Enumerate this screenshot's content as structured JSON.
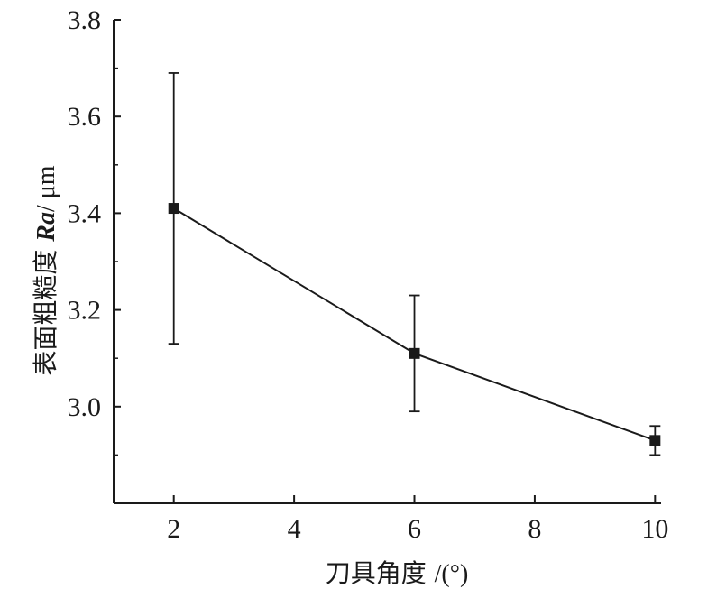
{
  "chart_data": {
    "type": "line",
    "x": [
      2,
      6,
      10
    ],
    "series": [
      {
        "values": [
          3.41,
          3.11,
          2.93
        ],
        "error_upper": [
          3.69,
          3.23,
          2.96
        ],
        "error_lower": [
          3.13,
          2.99,
          2.9
        ],
        "marker": "square"
      }
    ],
    "xlabel_parts": {
      "text": "刀具角度 ",
      "unit": "/(°)"
    },
    "ylabel_parts": {
      "text": "表面粗糙度 ",
      "symbol": "Ra",
      "unit": "/ μm"
    },
    "xlim": [
      1,
      10.1
    ],
    "ylim": [
      2.8,
      3.8
    ],
    "xticks": [
      "2",
      "4",
      "6",
      "8",
      "10"
    ],
    "yticks": [
      "3.0",
      "3.2",
      "3.4",
      "3.6",
      "3.8"
    ],
    "grid": false,
    "line_color": "#1a1a1a"
  }
}
